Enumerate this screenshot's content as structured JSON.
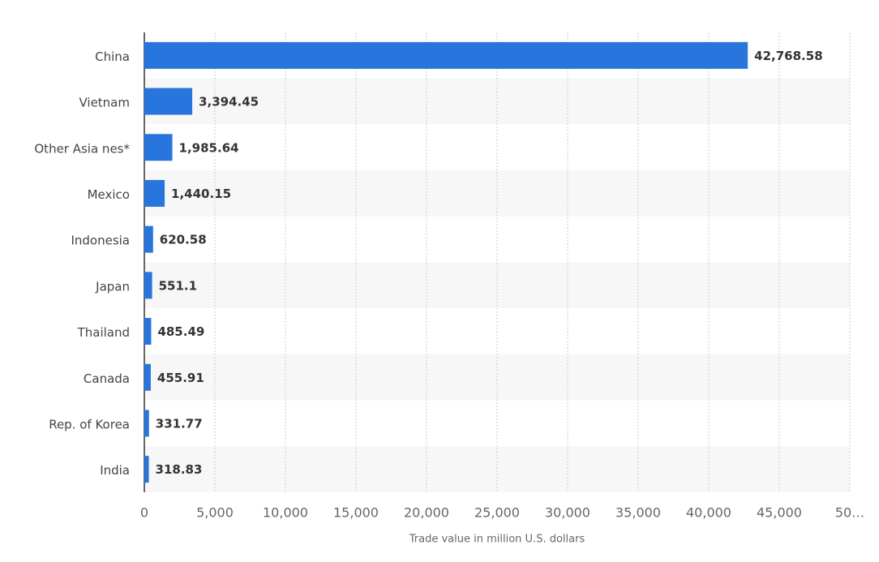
{
  "chart_data": {
    "type": "barh",
    "categories": [
      "China",
      "Vietnam",
      "Other Asia nes*",
      "Mexico",
      "Indonesia",
      "Japan",
      "Thailand",
      "Canada",
      "Rep. of Korea",
      "India"
    ],
    "values": [
      42768.58,
      3394.45,
      1985.64,
      1440.15,
      620.58,
      551.1,
      485.49,
      455.91,
      331.77,
      318.83
    ],
    "value_labels": [
      "42,768.58",
      "3,394.45",
      "1,985.64",
      "1,440.15",
      "620.58",
      "551.1",
      "485.49",
      "455.91",
      "331.77",
      "318.83"
    ],
    "color": "#2876dd",
    "xlabel": "Trade value in million U.S. dollars",
    "xlim": [
      0,
      50000
    ],
    "xticks": [
      0,
      {
        "value": 5000,
        "label": "5,000"
      },
      {
        "value": 10000,
        "label": "10,000"
      },
      {
        "value": 15000,
        "label": "15,000"
      },
      {
        "value": 20000,
        "label": "20,000"
      },
      {
        "value": 25000,
        "label": "25,000"
      },
      {
        "value": 30000,
        "label": "30,000"
      },
      {
        "value": 35000,
        "label": "35,000"
      },
      {
        "value": 40000,
        "label": "40,000"
      },
      {
        "value": 45000,
        "label": "45,000"
      },
      {
        "value": 50000,
        "label": "50…"
      }
    ],
    "grid": true
  }
}
